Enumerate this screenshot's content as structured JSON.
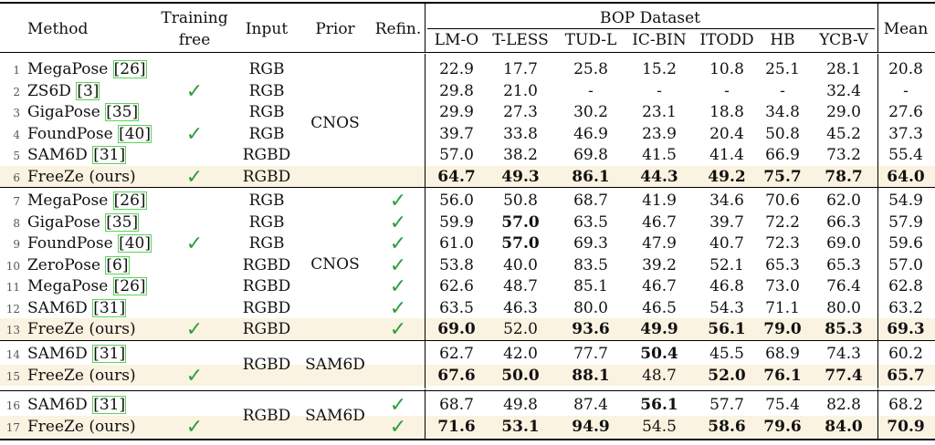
{
  "header": {
    "method": "Method",
    "training_free": [
      "Training",
      "free"
    ],
    "input": "Input",
    "prior": "Prior",
    "refin": "Refin.",
    "bop_dataset": "BOP Dataset",
    "datasets": [
      "LM-O",
      "T-LESS",
      "TUD-L",
      "IC-BIN",
      "ITODD",
      "HB",
      "YCB-V"
    ],
    "mean": "Mean"
  },
  "groups": [
    {
      "prior": "CNOS",
      "rows": [
        {
          "n": "1",
          "method": "MegaPose",
          "cite": "26",
          "tf": false,
          "input": "RGB",
          "refin": false,
          "vals": [
            "22.9",
            "17.7",
            "25.8",
            "15.2",
            "10.8",
            "25.1",
            "28.1"
          ],
          "mean": "20.8",
          "bold": [],
          "hl": false
        },
        {
          "n": "2",
          "method": "ZS6D",
          "cite": "3",
          "tf": true,
          "input": "RGB",
          "refin": false,
          "vals": [
            "29.8",
            "21.0",
            "-",
            "-",
            "-",
            "-",
            "32.4"
          ],
          "mean": "-",
          "bold": [],
          "hl": false
        },
        {
          "n": "3",
          "method": "GigaPose",
          "cite": "35",
          "tf": false,
          "input": "RGB",
          "refin": false,
          "vals": [
            "29.9",
            "27.3",
            "30.2",
            "23.1",
            "18.8",
            "34.8",
            "29.0"
          ],
          "mean": "27.6",
          "bold": [],
          "hl": false
        },
        {
          "n": "4",
          "method": "FoundPose",
          "cite": "40",
          "tf": true,
          "input": "RGB",
          "refin": false,
          "vals": [
            "39.7",
            "33.8",
            "46.9",
            "23.9",
            "20.4",
            "50.8",
            "45.2"
          ],
          "mean": "37.3",
          "bold": [],
          "hl": false
        },
        {
          "n": "5",
          "method": "SAM6D",
          "cite": "31",
          "tf": false,
          "input": "RGBD",
          "refin": false,
          "vals": [
            "57.0",
            "38.2",
            "69.8",
            "41.5",
            "41.4",
            "66.9",
            "73.2"
          ],
          "mean": "55.4",
          "bold": [],
          "hl": false
        },
        {
          "n": "6",
          "method": "FreeZe (ours)",
          "cite": "",
          "tf": true,
          "input": "RGBD",
          "refin": false,
          "vals": [
            "64.7",
            "49.3",
            "86.1",
            "44.3",
            "49.2",
            "75.7",
            "78.7"
          ],
          "mean": "64.0",
          "bold": [
            0,
            1,
            2,
            3,
            4,
            5,
            6,
            7
          ],
          "hl": true
        }
      ]
    },
    {
      "prior": "CNOS",
      "rows": [
        {
          "n": "7",
          "method": "MegaPose",
          "cite": "26",
          "tf": false,
          "input": "RGB",
          "refin": true,
          "vals": [
            "56.0",
            "50.8",
            "68.7",
            "41.9",
            "34.6",
            "70.6",
            "62.0"
          ],
          "mean": "54.9",
          "bold": [],
          "hl": false
        },
        {
          "n": "8",
          "method": "GigaPose",
          "cite": "35",
          "tf": false,
          "input": "RGB",
          "refin": true,
          "vals": [
            "59.9",
            "57.0",
            "63.5",
            "46.7",
            "39.7",
            "72.2",
            "66.3"
          ],
          "mean": "57.9",
          "bold": [
            1
          ],
          "hl": false
        },
        {
          "n": "9",
          "method": "FoundPose",
          "cite": "40",
          "tf": true,
          "input": "RGB",
          "refin": true,
          "vals": [
            "61.0",
            "57.0",
            "69.3",
            "47.9",
            "40.7",
            "72.3",
            "69.0"
          ],
          "mean": "59.6",
          "bold": [
            1
          ],
          "hl": false
        },
        {
          "n": "10",
          "method": "ZeroPose",
          "cite": "6",
          "tf": false,
          "input": "RGBD",
          "refin": true,
          "vals": [
            "53.8",
            "40.0",
            "83.5",
            "39.2",
            "52.1",
            "65.3",
            "65.3"
          ],
          "mean": "57.0",
          "bold": [],
          "hl": false
        },
        {
          "n": "11",
          "method": "MegaPose",
          "cite": "26",
          "tf": false,
          "input": "RGBD",
          "refin": true,
          "vals": [
            "62.6",
            "48.7",
            "85.1",
            "46.7",
            "46.8",
            "73.0",
            "76.4"
          ],
          "mean": "62.8",
          "bold": [],
          "hl": false
        },
        {
          "n": "12",
          "method": "SAM6D",
          "cite": "31",
          "tf": false,
          "input": "RGBD",
          "refin": true,
          "vals": [
            "63.5",
            "46.3",
            "80.0",
            "46.5",
            "54.3",
            "71.1",
            "80.0"
          ],
          "mean": "63.2",
          "bold": [],
          "hl": false
        },
        {
          "n": "13",
          "method": "FreeZe (ours)",
          "cite": "",
          "tf": true,
          "input": "RGBD",
          "refin": true,
          "vals": [
            "69.0",
            "52.0",
            "93.6",
            "49.9",
            "56.1",
            "79.0",
            "85.3"
          ],
          "mean": "69.3",
          "bold": [
            0,
            2,
            3,
            4,
            5,
            6,
            7
          ],
          "hl": true
        }
      ]
    },
    {
      "prior": "SAM6D",
      "input": "RGBD",
      "rows": [
        {
          "n": "14",
          "method": "SAM6D",
          "cite": "31",
          "tf": false,
          "refin": false,
          "vals": [
            "62.7",
            "42.0",
            "77.7",
            "50.4",
            "45.5",
            "68.9",
            "74.3"
          ],
          "mean": "60.2",
          "bold": [
            3
          ],
          "hl": false
        },
        {
          "n": "15",
          "method": "FreeZe (ours)",
          "cite": "",
          "tf": true,
          "refin": false,
          "vals": [
            "67.6",
            "50.0",
            "88.1",
            "48.7",
            "52.0",
            "76.1",
            "77.4"
          ],
          "mean": "65.7",
          "bold": [
            0,
            1,
            2,
            4,
            5,
            6,
            7
          ],
          "hl": true
        }
      ]
    },
    {
      "prior": "SAM6D",
      "input": "RGBD",
      "rows": [
        {
          "n": "16",
          "method": "SAM6D",
          "cite": "31",
          "tf": false,
          "refin": true,
          "vals": [
            "68.7",
            "49.8",
            "87.4",
            "56.1",
            "57.7",
            "75.4",
            "82.8"
          ],
          "mean": "68.2",
          "bold": [
            3
          ],
          "hl": false
        },
        {
          "n": "17",
          "method": "FreeZe (ours)",
          "cite": "",
          "tf": true,
          "refin": true,
          "vals": [
            "71.6",
            "53.1",
            "94.9",
            "54.5",
            "58.6",
            "79.6",
            "84.0"
          ],
          "mean": "70.9",
          "bold": [
            0,
            1,
            2,
            4,
            5,
            6,
            7
          ],
          "hl": true
        }
      ]
    }
  ],
  "check_symbol": "✓",
  "colors": {
    "highlight": "#fbf3e1",
    "check": "#2e9e3e",
    "cite_box": "#5ad35a"
  }
}
